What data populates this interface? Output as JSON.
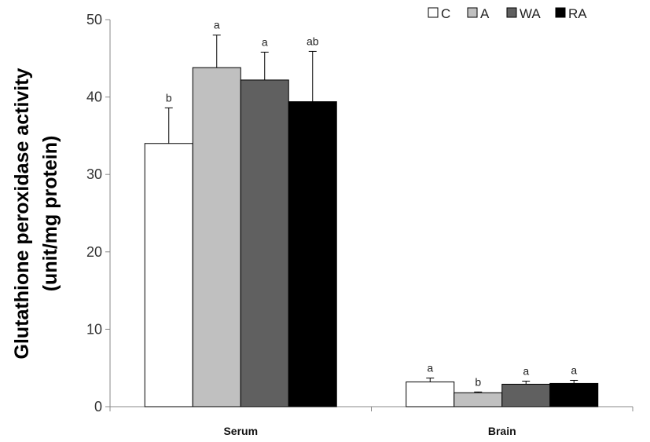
{
  "chart_data": {
    "type": "bar",
    "title": "",
    "xlabel": "",
    "ylabel": [
      "Glutathione peroxidase activity",
      "(unit/mg protein)"
    ],
    "ylim": [
      0,
      50
    ],
    "yticks": [
      0,
      10,
      20,
      30,
      40,
      50
    ],
    "categories": [
      "Serum",
      "Brain"
    ],
    "legend_position": "top-right",
    "grid": false,
    "series": [
      {
        "name": "C",
        "color": "#ffffff",
        "values": [
          34.0,
          3.2
        ],
        "errors": [
          4.6,
          0.5
        ],
        "labels": [
          "b",
          "a"
        ]
      },
      {
        "name": "A",
        "color": "#c0c0c0",
        "values": [
          43.8,
          1.8
        ],
        "errors": [
          4.2,
          0.1
        ],
        "labels": [
          "a",
          "b"
        ]
      },
      {
        "name": "WA",
        "color": "#606060",
        "values": [
          42.2,
          2.9
        ],
        "errors": [
          3.6,
          0.4
        ],
        "labels": [
          "a",
          "a"
        ]
      },
      {
        "name": "RA",
        "color": "#000000",
        "values": [
          39.4,
          3.0
        ],
        "errors": [
          6.5,
          0.4
        ],
        "labels": [
          "ab",
          "a"
        ]
      }
    ]
  }
}
